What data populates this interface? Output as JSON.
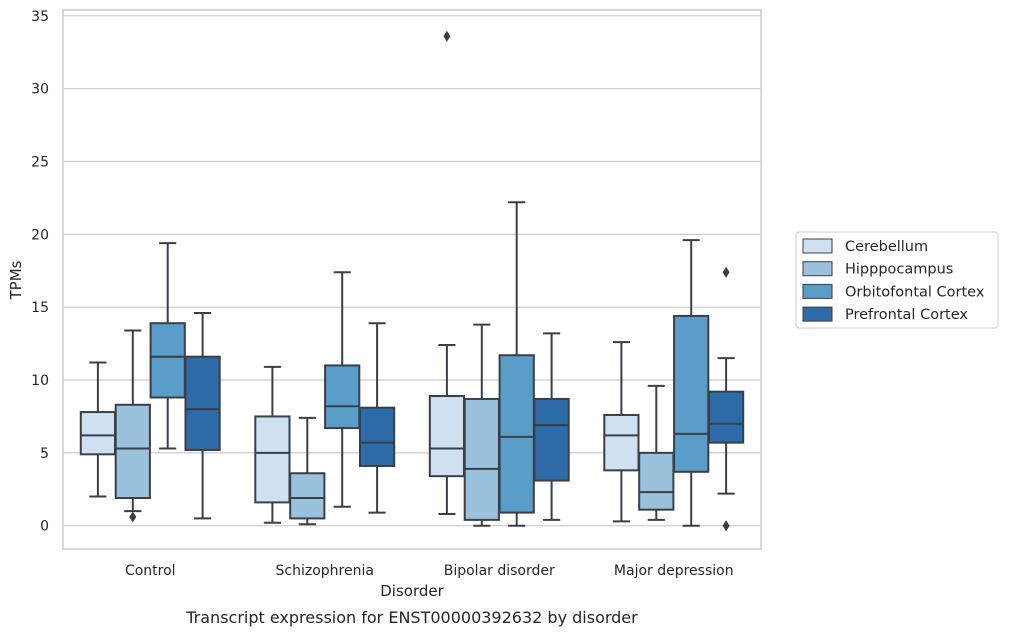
{
  "caption": "Transcript expression for ENST00000392632 by disorder",
  "chart_data": {
    "type": "box",
    "title": "",
    "xlabel": "Disorder",
    "ylabel": "TPMs",
    "ylim": [
      -1.6,
      35.4
    ],
    "yticks": [
      0,
      5,
      10,
      15,
      20,
      25,
      30,
      35
    ],
    "grid": true,
    "legend_position": "right (outside plot)",
    "categories": [
      "Control",
      "Schizophrenia",
      "Bipolar disorder",
      "Major depression"
    ],
    "series": [
      {
        "name": "Cerebellum",
        "color": "#cfe0f0",
        "boxes": [
          {
            "whislo": 2.0,
            "q1": 4.9,
            "med": 6.2,
            "q3": 7.8,
            "whishi": 11.2,
            "fliers": []
          },
          {
            "whislo": 0.2,
            "q1": 1.6,
            "med": 5.0,
            "q3": 7.5,
            "whishi": 10.9,
            "fliers": []
          },
          {
            "whislo": 0.8,
            "q1": 3.4,
            "med": 5.3,
            "q3": 8.9,
            "whishi": 12.4,
            "fliers": [
              33.6
            ]
          },
          {
            "whislo": 0.3,
            "q1": 3.8,
            "med": 6.2,
            "q3": 7.6,
            "whishi": 12.6,
            "fliers": []
          }
        ]
      },
      {
        "name": "Hipppocampus",
        "color": "#9bc2dc",
        "boxes": [
          {
            "whislo": 1.0,
            "q1": 1.9,
            "med": 5.3,
            "q3": 8.3,
            "whishi": 13.4,
            "fliers": [
              0.6
            ]
          },
          {
            "whislo": 0.1,
            "q1": 0.5,
            "med": 1.9,
            "q3": 3.6,
            "whishi": 7.4,
            "fliers": []
          },
          {
            "whislo": 0.0,
            "q1": 0.4,
            "med": 3.9,
            "q3": 8.7,
            "whishi": 13.8,
            "fliers": []
          },
          {
            "whislo": 0.4,
            "q1": 1.1,
            "med": 2.3,
            "q3": 5.0,
            "whishi": 9.6,
            "fliers": []
          }
        ]
      },
      {
        "name": "Orbitofontal Cortex",
        "color": "#5a9dc8",
        "boxes": [
          {
            "whislo": 5.3,
            "q1": 8.8,
            "med": 11.6,
            "q3": 13.9,
            "whishi": 19.4,
            "fliers": []
          },
          {
            "whislo": 1.3,
            "q1": 6.7,
            "med": 8.2,
            "q3": 11.0,
            "whishi": 17.4,
            "fliers": []
          },
          {
            "whislo": 0.0,
            "q1": 0.9,
            "med": 6.1,
            "q3": 11.7,
            "whishi": 22.2,
            "fliers": []
          },
          {
            "whislo": 0.0,
            "q1": 3.7,
            "med": 6.3,
            "q3": 14.4,
            "whishi": 19.6,
            "fliers": []
          }
        ]
      },
      {
        "name": "Prefrontal Cortex",
        "color": "#2d6ca8",
        "boxes": [
          {
            "whislo": 0.5,
            "q1": 5.2,
            "med": 8.0,
            "q3": 11.6,
            "whishi": 14.6,
            "fliers": []
          },
          {
            "whislo": 0.9,
            "q1": 4.1,
            "med": 5.7,
            "q3": 8.1,
            "whishi": 13.9,
            "fliers": []
          },
          {
            "whislo": 0.4,
            "q1": 3.1,
            "med": 6.9,
            "q3": 8.7,
            "whishi": 13.2,
            "fliers": []
          },
          {
            "whislo": 2.2,
            "q1": 5.7,
            "med": 7.0,
            "q3": 9.2,
            "whishi": 11.5,
            "fliers": [
              17.4,
              0.0
            ]
          }
        ]
      }
    ]
  }
}
